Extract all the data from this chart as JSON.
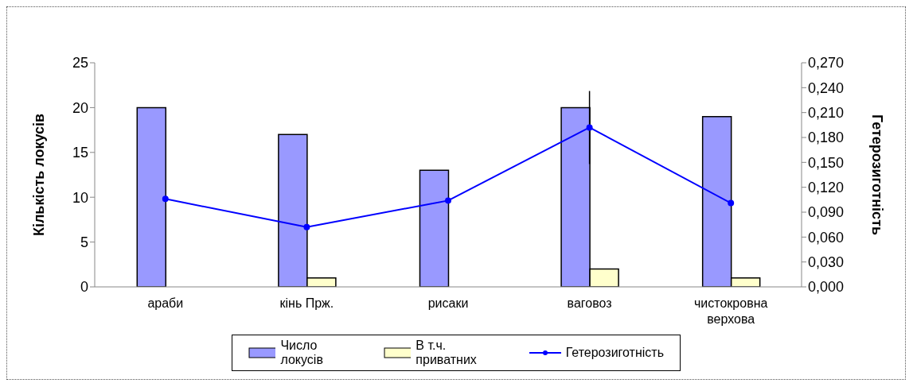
{
  "chart_data": {
    "type": "bar",
    "categories": [
      "араби",
      "кінь Прж.",
      "рисаки",
      "ваговоз",
      "чистокровна верхова"
    ],
    "ylabel": "Кількість локусів",
    "y2label": "Гетерозиготність",
    "series": [
      {
        "name": "Число локусів",
        "color": "#9999ff",
        "values": [
          20,
          17,
          13,
          20,
          19
        ]
      },
      {
        "name": "В т.ч. приватних",
        "color": "#ffffcc",
        "values": [
          0,
          1,
          0,
          2,
          1
        ]
      },
      {
        "name": "Гетерозиготність",
        "type": "line",
        "axis": "y2",
        "color": "#0000ff",
        "values": [
          0.106,
          0.072,
          0.104,
          0.192,
          0.101
        ],
        "errors": [
          null,
          null,
          null,
          0.044,
          null
        ]
      }
    ],
    "ylim": [
      0,
      25
    ],
    "yticks": [
      0,
      5,
      10,
      15,
      20,
      25
    ],
    "y2lim": [
      0,
      0.27
    ],
    "y2ticks": [
      {
        "value": 0,
        "label": "0,000"
      },
      {
        "value": 0.03,
        "label": "0,030"
      },
      {
        "value": 0.06,
        "label": "0,060"
      },
      {
        "value": 0.09,
        "label": "0,090"
      },
      {
        "value": 0.12,
        "label": "0,120"
      },
      {
        "value": 0.15,
        "label": "0,150"
      },
      {
        "value": 0.18,
        "label": "0,180"
      },
      {
        "value": 0.21,
        "label": "0,210"
      },
      {
        "value": 0.24,
        "label": "0,240"
      },
      {
        "value": 0.27,
        "label": "0,270"
      }
    ],
    "marker": "circle",
    "grid": false,
    "legend": "bottom"
  }
}
